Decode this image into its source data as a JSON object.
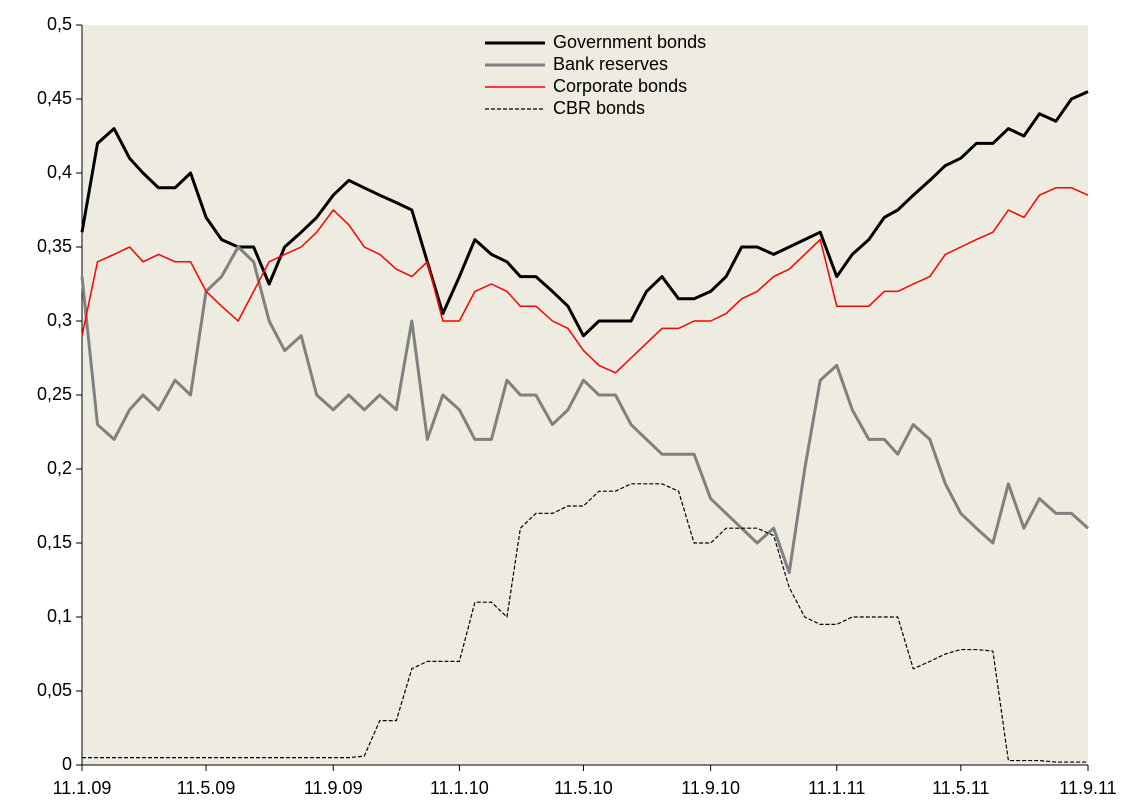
{
  "chart_data": {
    "type": "line",
    "x": [
      "2009-01-11",
      "2009-01-26",
      "2009-02-11",
      "2009-02-26",
      "2009-03-11",
      "2009-03-26",
      "2009-04-11",
      "2009-04-26",
      "2009-05-11",
      "2009-05-26",
      "2009-06-11",
      "2009-06-26",
      "2009-07-11",
      "2009-07-26",
      "2009-08-11",
      "2009-08-26",
      "2009-09-11",
      "2009-09-26",
      "2009-10-11",
      "2009-10-26",
      "2009-11-11",
      "2009-11-26",
      "2009-12-11",
      "2009-12-26",
      "2010-01-11",
      "2010-01-26",
      "2010-02-11",
      "2010-02-26",
      "2010-03-11",
      "2010-03-26",
      "2010-04-11",
      "2010-04-26",
      "2010-05-11",
      "2010-05-26",
      "2010-06-11",
      "2010-06-26",
      "2010-07-11",
      "2010-07-26",
      "2010-08-11",
      "2010-08-26",
      "2010-09-11",
      "2010-09-26",
      "2010-10-11",
      "2010-10-26",
      "2010-11-11",
      "2010-11-26",
      "2010-12-11",
      "2010-12-26",
      "2011-01-11",
      "2011-01-26",
      "2011-02-11",
      "2011-02-26",
      "2011-03-11",
      "2011-03-26",
      "2011-04-11",
      "2011-04-26",
      "2011-05-11",
      "2011-05-26",
      "2011-06-11",
      "2011-06-26",
      "2011-07-11",
      "2011-07-26",
      "2011-08-11",
      "2011-08-26",
      "2011-09-11"
    ],
    "series": [
      {
        "name": "Government bonds",
        "color": "#000000",
        "linewidth": 3,
        "linestyle": "solid",
        "values": [
          0.36,
          0.42,
          0.43,
          0.41,
          0.4,
          0.39,
          0.39,
          0.4,
          0.37,
          0.355,
          0.35,
          0.35,
          0.325,
          0.35,
          0.36,
          0.37,
          0.385,
          0.395,
          0.39,
          0.385,
          0.38,
          0.375,
          0.34,
          0.305,
          0.33,
          0.355,
          0.345,
          0.34,
          0.33,
          0.33,
          0.32,
          0.31,
          0.29,
          0.3,
          0.3,
          0.3,
          0.32,
          0.33,
          0.315,
          0.315,
          0.32,
          0.33,
          0.35,
          0.35,
          0.345,
          0.35,
          0.355,
          0.36,
          0.33,
          0.345,
          0.355,
          0.37,
          0.375,
          0.385,
          0.395,
          0.405,
          0.41,
          0.42,
          0.42,
          0.43,
          0.425,
          0.44,
          0.435,
          0.45,
          0.455
        ]
      },
      {
        "name": "Bank reserves",
        "color": "#808080",
        "linewidth": 3,
        "linestyle": "solid",
        "values": [
          0.33,
          0.23,
          0.22,
          0.24,
          0.25,
          0.24,
          0.26,
          0.25,
          0.32,
          0.33,
          0.35,
          0.34,
          0.3,
          0.28,
          0.29,
          0.25,
          0.24,
          0.25,
          0.24,
          0.25,
          0.24,
          0.3,
          0.22,
          0.25,
          0.24,
          0.22,
          0.22,
          0.26,
          0.25,
          0.25,
          0.23,
          0.24,
          0.26,
          0.25,
          0.25,
          0.23,
          0.22,
          0.21,
          0.21,
          0.21,
          0.18,
          0.17,
          0.16,
          0.15,
          0.16,
          0.13,
          0.2,
          0.26,
          0.27,
          0.24,
          0.22,
          0.22,
          0.21,
          0.23,
          0.22,
          0.19,
          0.17,
          0.16,
          0.15,
          0.19,
          0.16,
          0.18,
          0.17,
          0.17,
          0.16
        ]
      },
      {
        "name": "Corporate bonds",
        "color": "#ff0000",
        "linewidth": 1.5,
        "linestyle": "solid",
        "values": [
          0.29,
          0.34,
          0.345,
          0.35,
          0.34,
          0.345,
          0.34,
          0.34,
          0.32,
          0.31,
          0.3,
          0.32,
          0.34,
          0.345,
          0.35,
          0.36,
          0.375,
          0.365,
          0.35,
          0.345,
          0.335,
          0.33,
          0.34,
          0.3,
          0.3,
          0.32,
          0.325,
          0.32,
          0.31,
          0.31,
          0.3,
          0.295,
          0.28,
          0.27,
          0.265,
          0.275,
          0.285,
          0.295,
          0.295,
          0.3,
          0.3,
          0.305,
          0.315,
          0.32,
          0.33,
          0.335,
          0.345,
          0.355,
          0.31,
          0.31,
          0.31,
          0.32,
          0.32,
          0.325,
          0.33,
          0.345,
          0.35,
          0.355,
          0.36,
          0.375,
          0.37,
          0.385,
          0.39,
          0.39,
          0.385
        ]
      },
      {
        "name": "CBR bonds",
        "color": "#000000",
        "linewidth": 1.2,
        "linestyle": "dashed",
        "values": [
          0.005,
          0.005,
          0.005,
          0.005,
          0.005,
          0.005,
          0.005,
          0.005,
          0.005,
          0.005,
          0.005,
          0.005,
          0.005,
          0.005,
          0.005,
          0.005,
          0.005,
          0.005,
          0.006,
          0.03,
          0.03,
          0.065,
          0.07,
          0.07,
          0.07,
          0.11,
          0.11,
          0.1,
          0.16,
          0.17,
          0.17,
          0.175,
          0.175,
          0.185,
          0.185,
          0.19,
          0.19,
          0.19,
          0.185,
          0.15,
          0.15,
          0.16,
          0.16,
          0.16,
          0.155,
          0.12,
          0.1,
          0.095,
          0.095,
          0.1,
          0.1,
          0.1,
          0.1,
          0.065,
          0.07,
          0.075,
          0.078,
          0.078,
          0.077,
          0.003,
          0.003,
          0.003,
          0.002,
          0.002,
          0.002
        ]
      }
    ],
    "xlim": [
      "2009-01-11",
      "2011-09-11"
    ],
    "xticks": [
      {
        "value": "2009-01-11",
        "label": "11.1.09"
      },
      {
        "value": "2009-05-11",
        "label": "11.5.09"
      },
      {
        "value": "2009-09-11",
        "label": "11.9.09"
      },
      {
        "value": "2010-01-11",
        "label": "11.1.10"
      },
      {
        "value": "2010-05-11",
        "label": "11.5.10"
      },
      {
        "value": "2010-09-11",
        "label": "11.9.10"
      },
      {
        "value": "2011-01-11",
        "label": "11.1.11"
      },
      {
        "value": "2011-05-11",
        "label": "11.5.11"
      },
      {
        "value": "2011-09-11",
        "label": "11.9.11"
      }
    ],
    "ylim": [
      0,
      0.5
    ],
    "yticks": [
      0,
      {
        "value": 0.05,
        "label": "0,05"
      },
      {
        "value": 0.1,
        "label": "0,1"
      },
      {
        "value": 0.15,
        "label": "0,15"
      },
      {
        "value": 0.2,
        "label": "0,2"
      },
      {
        "value": 0.25,
        "label": "0,25"
      },
      {
        "value": 0.3,
        "label": "0,3"
      },
      {
        "value": 0.35,
        "label": "0,35"
      },
      {
        "value": 0.4,
        "label": "0,4"
      },
      {
        "value": 0.45,
        "label": "0,45"
      },
      {
        "value": 0.5,
        "label": "0,5"
      }
    ],
    "grid": false,
    "legend": "upper center",
    "plot_background": "#eeebe1"
  }
}
